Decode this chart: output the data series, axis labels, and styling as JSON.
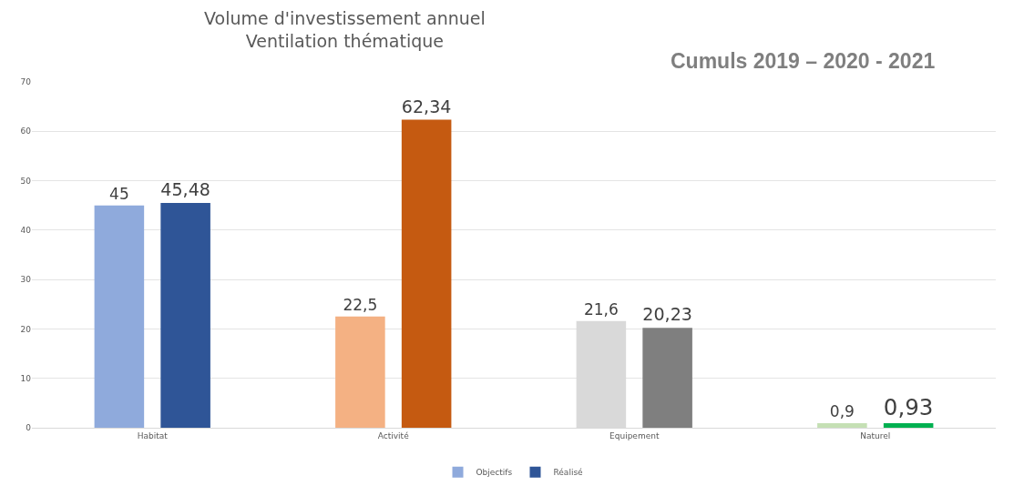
{
  "chart_data": {
    "type": "bar",
    "title": "Volume d'investissement annuel\nVentilation thématique",
    "subtitle": "Cumuls 2019 – 2020 - 2021",
    "categories": [
      "Habitat",
      "Activité",
      "Equipement",
      "Naturel"
    ],
    "series": [
      {
        "name": "Objectifs",
        "colors": [
          "#8faadc",
          "#f4b183",
          "#d9d9d9",
          "#c5e0b4"
        ],
        "values": [
          45,
          22.5,
          21.6,
          0.9
        ],
        "value_labels": [
          "45",
          "22,5",
          "21,6",
          "0,9"
        ]
      },
      {
        "name": "Réalisé",
        "colors": [
          "#2f5597",
          "#c55a11",
          "#7f7f7f",
          "#00b050"
        ],
        "values": [
          45.48,
          62.34,
          20.23,
          0.93
        ],
        "value_labels": [
          "45,48",
          "62,34",
          "20,23",
          "0,93"
        ]
      }
    ],
    "ylim": [
      0,
      70
    ],
    "yticks": [
      0,
      10,
      20,
      30,
      40,
      50,
      60,
      70
    ],
    "grid": "y",
    "legend": "bottom"
  }
}
